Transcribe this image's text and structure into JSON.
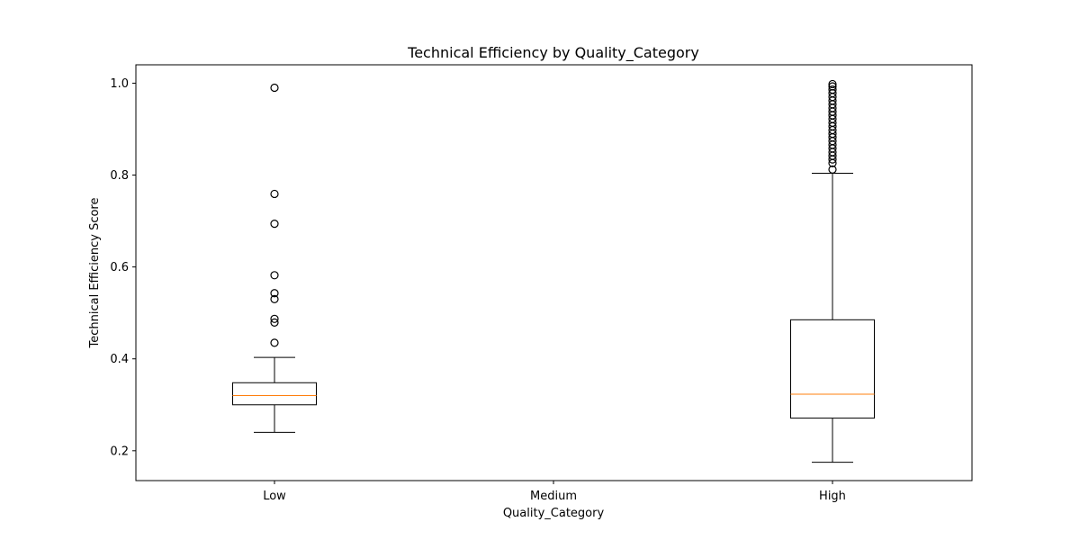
{
  "chart_data": {
    "type": "box",
    "title": "Technical Efficiency by Quality_Category",
    "xlabel": "Quality_Category",
    "ylabel": "Technical Efficiency Score",
    "categories": [
      "Low",
      "Medium",
      "High"
    ],
    "ylim": [
      0.135,
      1.04
    ],
    "yticks": [
      0.2,
      0.4,
      0.6,
      0.8,
      1.0
    ],
    "ytick_labels": [
      "0.2",
      "0.4",
      "0.6",
      "0.8",
      "1.0"
    ],
    "grid": false,
    "colors": {
      "box": "#000000",
      "median": "#ff7f0e",
      "frame": "#000000"
    },
    "boxes": [
      {
        "category": "Low",
        "whisker_low": 0.24,
        "q1": 0.3,
        "median": 0.32,
        "q3": 0.348,
        "whisker_high": 0.403,
        "outliers": [
          0.435,
          0.479,
          0.487,
          0.53,
          0.543,
          0.582,
          0.694,
          0.759,
          0.99
        ]
      },
      {
        "category": "Medium",
        "empty": true
      },
      {
        "category": "High",
        "whisker_low": 0.175,
        "q1": 0.271,
        "median": 0.323,
        "q3": 0.485,
        "whisker_high": 0.804,
        "outliers": [
          0.812,
          0.826,
          0.834,
          0.842,
          0.85,
          0.858,
          0.866,
          0.874,
          0.882,
          0.89,
          0.898,
          0.906,
          0.914,
          0.922,
          0.93,
          0.938,
          0.946,
          0.954,
          0.962,
          0.97,
          0.978,
          0.986,
          0.993,
          0.998
        ]
      }
    ]
  }
}
